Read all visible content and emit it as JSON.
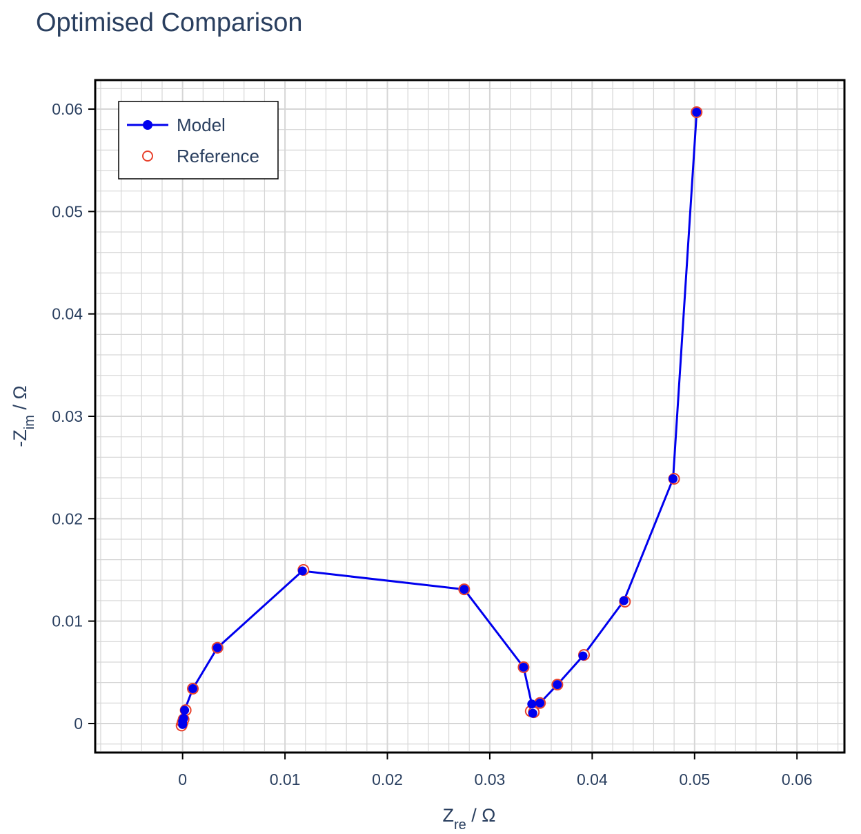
{
  "chart_data": {
    "type": "scatter",
    "title": "Optimised Comparison",
    "xlabel": {
      "base": "Z",
      "sub": "re",
      "suffix": " / Ω"
    },
    "ylabel": {
      "base": "-Z",
      "sub": "im",
      "suffix": " / Ω"
    },
    "xlim": [
      -0.0084,
      0.0645
    ],
    "ylim": [
      -0.0027,
      0.0627
    ],
    "xticks": [
      0,
      0.01,
      0.02,
      0.03,
      0.04,
      0.05,
      0.06
    ],
    "xtick_labels": [
      "0",
      "0.01",
      "0.02",
      "0.03",
      "0.04",
      "0.05",
      "0.06"
    ],
    "yticks": [
      0,
      0.01,
      0.02,
      0.03,
      0.04,
      0.05,
      0.06
    ],
    "ytick_labels": [
      "0",
      "0.01",
      "0.02",
      "0.03",
      "0.04",
      "0.05",
      "0.06"
    ],
    "grid": true,
    "legend_position": "top-left",
    "series": [
      {
        "name": "Model",
        "mode": "lines+markers",
        "color": "#0000ee",
        "x": [
          0.0,
          0.0,
          0.0001,
          0.0002,
          0.001,
          0.0034,
          0.0117,
          0.0275,
          0.0333,
          0.0341,
          0.0342,
          0.0349,
          0.0366,
          0.0391,
          0.0431,
          0.0479,
          0.0502
        ],
        "y": [
          -0.0001,
          0.0002,
          0.0005,
          0.0013,
          0.0034,
          0.0074,
          0.0149,
          0.0131,
          0.0055,
          0.0019,
          0.001,
          0.002,
          0.0038,
          0.0066,
          0.012,
          0.0239,
          0.0597
        ]
      },
      {
        "name": "Reference",
        "mode": "markers",
        "color": "#e8412c",
        "x": [
          -0.0001,
          0.0,
          0.0001,
          0.0003,
          0.001,
          0.0034,
          0.0118,
          0.0275,
          0.0333,
          0.034,
          0.0343,
          0.0349,
          0.0366,
          0.0392,
          0.0432,
          0.048,
          0.0502
        ],
        "y": [
          -0.0002,
          0.0001,
          0.0004,
          0.0013,
          0.0034,
          0.0074,
          0.015,
          0.0131,
          0.0055,
          0.0012,
          0.0011,
          0.002,
          0.0038,
          0.0067,
          0.0119,
          0.0239,
          0.0597
        ]
      }
    ]
  }
}
